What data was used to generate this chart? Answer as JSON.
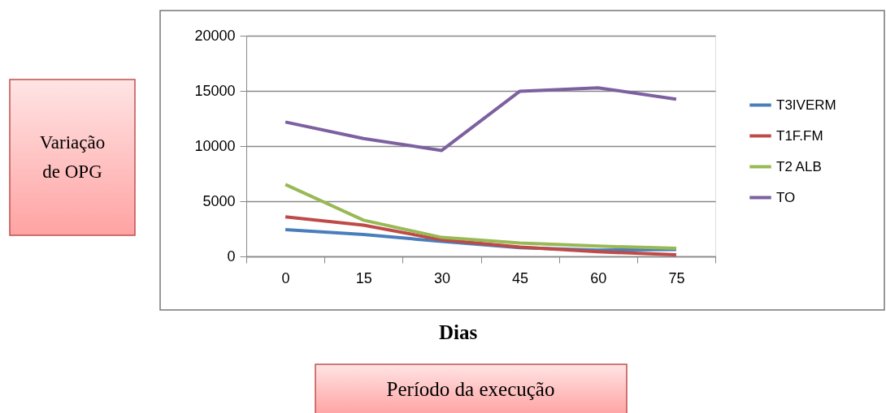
{
  "chart_data": {
    "type": "line",
    "xlabel": "Dias",
    "ylabel": "Variação de OPG",
    "annotations": [
      "Período da execução"
    ],
    "categories": [
      "0",
      "15",
      "30",
      "45",
      "60",
      "75"
    ],
    "series": [
      {
        "name": "T3IVERM",
        "color": "#4a7ebb",
        "values": [
          2430,
          1980,
          1360,
          790,
          570,
          620
        ]
      },
      {
        "name": "T1F.FM",
        "color": "#be4b48",
        "values": [
          3590,
          2830,
          1500,
          850,
          420,
          140
        ]
      },
      {
        "name": "T2 ALB",
        "color": "#98b954",
        "values": [
          6520,
          3280,
          1720,
          1220,
          930,
          730
        ]
      },
      {
        "name": "TO",
        "color": "#7d60a0",
        "values": [
          12180,
          10680,
          9600,
          14970,
          15280,
          14240
        ]
      }
    ],
    "ylim": [
      0,
      20000
    ],
    "yticks": [
      0,
      5000,
      10000,
      15000,
      20000
    ],
    "grid": "y",
    "legend": "right",
    "marker": "none",
    "line_style": "solid"
  }
}
